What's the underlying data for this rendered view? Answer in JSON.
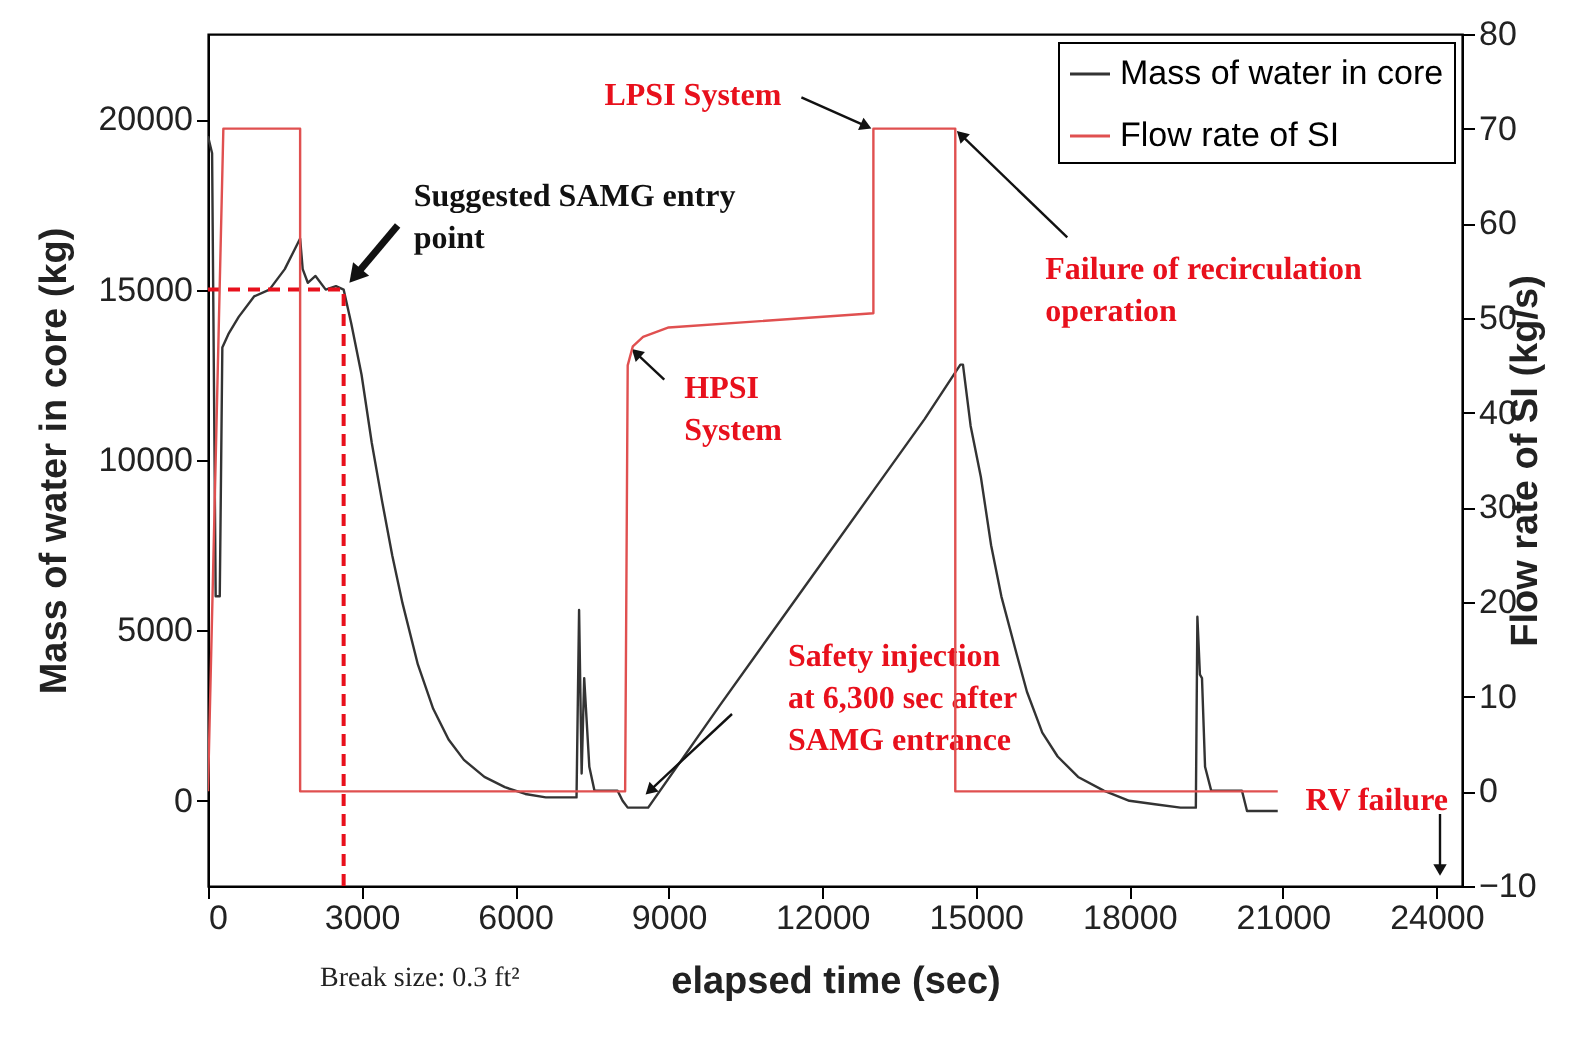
{
  "chart_data": {
    "type": "line",
    "xlabel": "elapsed time (sec)",
    "ylabel": "Mass of water in core (kg)",
    "y2label": "Flow rate of SI (kg/s)",
    "xlim": [
      0,
      24500
    ],
    "xticks": [
      0,
      3000,
      6000,
      9000,
      12000,
      15000,
      18000,
      21000,
      24000
    ],
    "ylim": [
      -2500,
      22500
    ],
    "yticks": [
      0,
      5000,
      10000,
      15000,
      20000
    ],
    "y2lim": [
      -10,
      80
    ],
    "y2ticks": [
      -10,
      0,
      10,
      20,
      30,
      40,
      50,
      60,
      70,
      80
    ],
    "legend": "top right",
    "series": [
      {
        "name": "Mass of water in core",
        "color": "#333333",
        "type": "line",
        "x": [
          0,
          80,
          150,
          230,
          280,
          400,
          600,
          900,
          1200,
          1500,
          1700,
          1800,
          1850,
          1950,
          2100,
          2300,
          2500,
          2650,
          2800,
          3000,
          3200,
          3400,
          3600,
          3800,
          4100,
          4400,
          4700,
          5000,
          5400,
          5800,
          6200,
          6600,
          7100,
          7200,
          7250,
          7300,
          7350,
          7450,
          7550,
          8000,
          8100,
          8200,
          8600,
          10000,
          11000,
          12000,
          13000,
          14000,
          14700,
          14750,
          14900,
          15100,
          15300,
          15500,
          15800,
          16000,
          16300,
          16600,
          17000,
          17500,
          18000,
          18500,
          19000,
          19300,
          19330,
          19380,
          19420,
          19480,
          19600,
          20100,
          20200,
          20300,
          20900
        ],
        "values": [
          19500,
          19000,
          6000,
          6000,
          13300,
          13700,
          14200,
          14800,
          15000,
          15600,
          16200,
          16500,
          15600,
          15200,
          15400,
          15000,
          15100,
          15000,
          14000,
          12500,
          10500,
          8800,
          7200,
          5800,
          4000,
          2700,
          1800,
          1200,
          700,
          400,
          200,
          100,
          100,
          100,
          5600,
          800,
          3600,
          1000,
          300,
          300,
          0,
          -200,
          -200,
          2800,
          4900,
          7000,
          9100,
          11200,
          12800,
          12800,
          11000,
          9500,
          7500,
          6000,
          4300,
          3200,
          2000,
          1300,
          700,
          300,
          0,
          -100,
          -200,
          -200,
          5400,
          3700,
          3600,
          1000,
          300,
          300,
          300,
          -300,
          -300
        ]
      },
      {
        "name": "Flow rate of SI",
        "color": "#e05050",
        "type": "line",
        "axis": "y2",
        "x": [
          0,
          300,
          1800,
          1800,
          8150,
          8200,
          8300,
          8500,
          9000,
          13000,
          13000,
          14600,
          14600,
          20900
        ],
        "values": [
          0,
          70,
          70,
          0,
          0,
          45,
          47,
          48,
          49,
          50.5,
          70,
          70,
          0,
          0
        ]
      }
    ],
    "ref_lines": [
      {
        "axis": "y",
        "value": 15000,
        "color": "#e8101c",
        "line_style": "dashed"
      },
      {
        "axis": "x",
        "value": 2650,
        "color": "#e8101c",
        "line_style": "dashed"
      }
    ],
    "annotations": [
      {
        "text": "Suggested SAMG entry point",
        "x": 2650,
        "y": 15000
      },
      {
        "text": "LPSI System",
        "x": 13000,
        "y": 19700
      },
      {
        "text": "Failure of recirculation operation",
        "x": 14600,
        "y": 19700
      },
      {
        "text": "HPSI System",
        "x": 8250,
        "y": 13300
      },
      "Safety injection at 6,300 sec after SAMG entrance",
      "RV failure",
      "Break size: 0.3 ft²"
    ]
  }
}
